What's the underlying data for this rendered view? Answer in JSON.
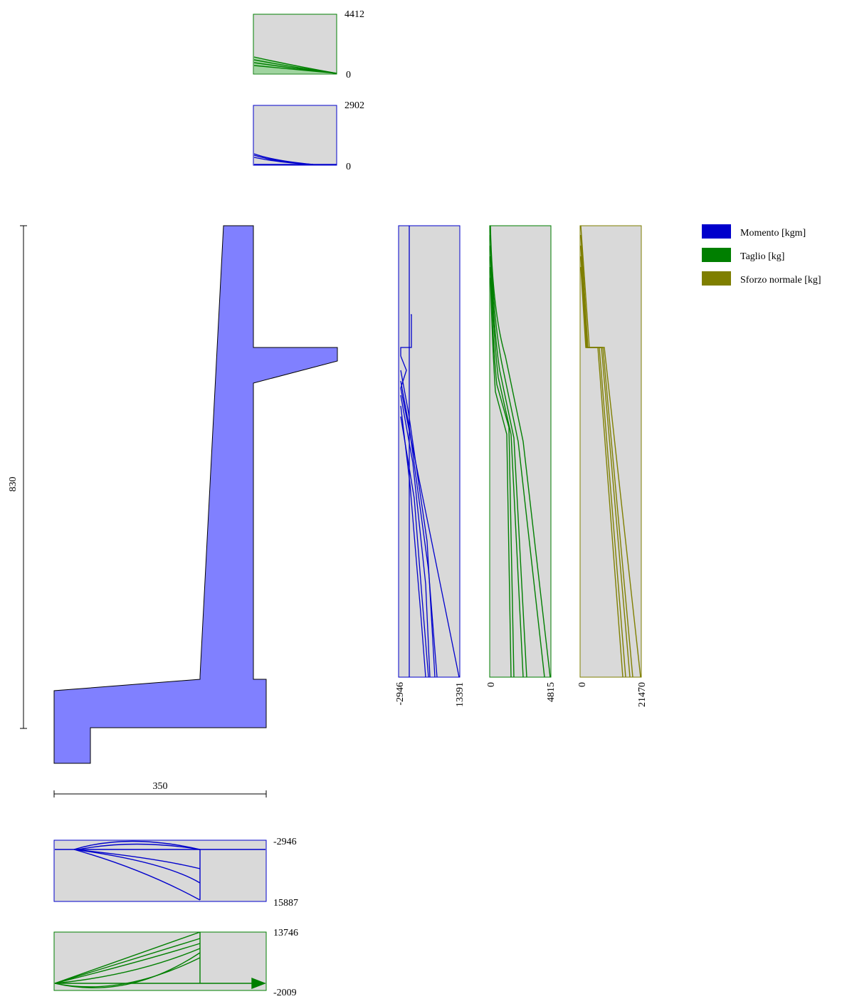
{
  "legend": [
    {
      "label": "Momento [kgm]",
      "color": "#0000cc"
    },
    {
      "label": "Taglio [kg]",
      "color": "#007f00"
    },
    {
      "label": "Sforzo normale [kg]",
      "color": "#7f7f00"
    }
  ],
  "colors": {
    "section_fill": "#8080ff",
    "section_stroke": "#000000",
    "panel_bg": "#d9d9d9",
    "moment": "#0000cc",
    "shear": "#007f00",
    "normal": "#7f7f00"
  },
  "dimensions": {
    "height": "830",
    "width": "350"
  },
  "small_diagrams": {
    "console_shear": {
      "max": "4412",
      "min": "0"
    },
    "console_moment": {
      "max": "2902",
      "min": "0"
    },
    "footing_moment": {
      "top": "-2946",
      "bottom": "15887"
    },
    "footing_shear": {
      "top": "13746",
      "bottom": "-2009"
    }
  },
  "stem_diagrams": {
    "moment": {
      "min": "-2946",
      "max": "13391"
    },
    "shear": {
      "min": "0",
      "max": "4815"
    },
    "normal": {
      "min": "0",
      "max": "21470"
    }
  }
}
